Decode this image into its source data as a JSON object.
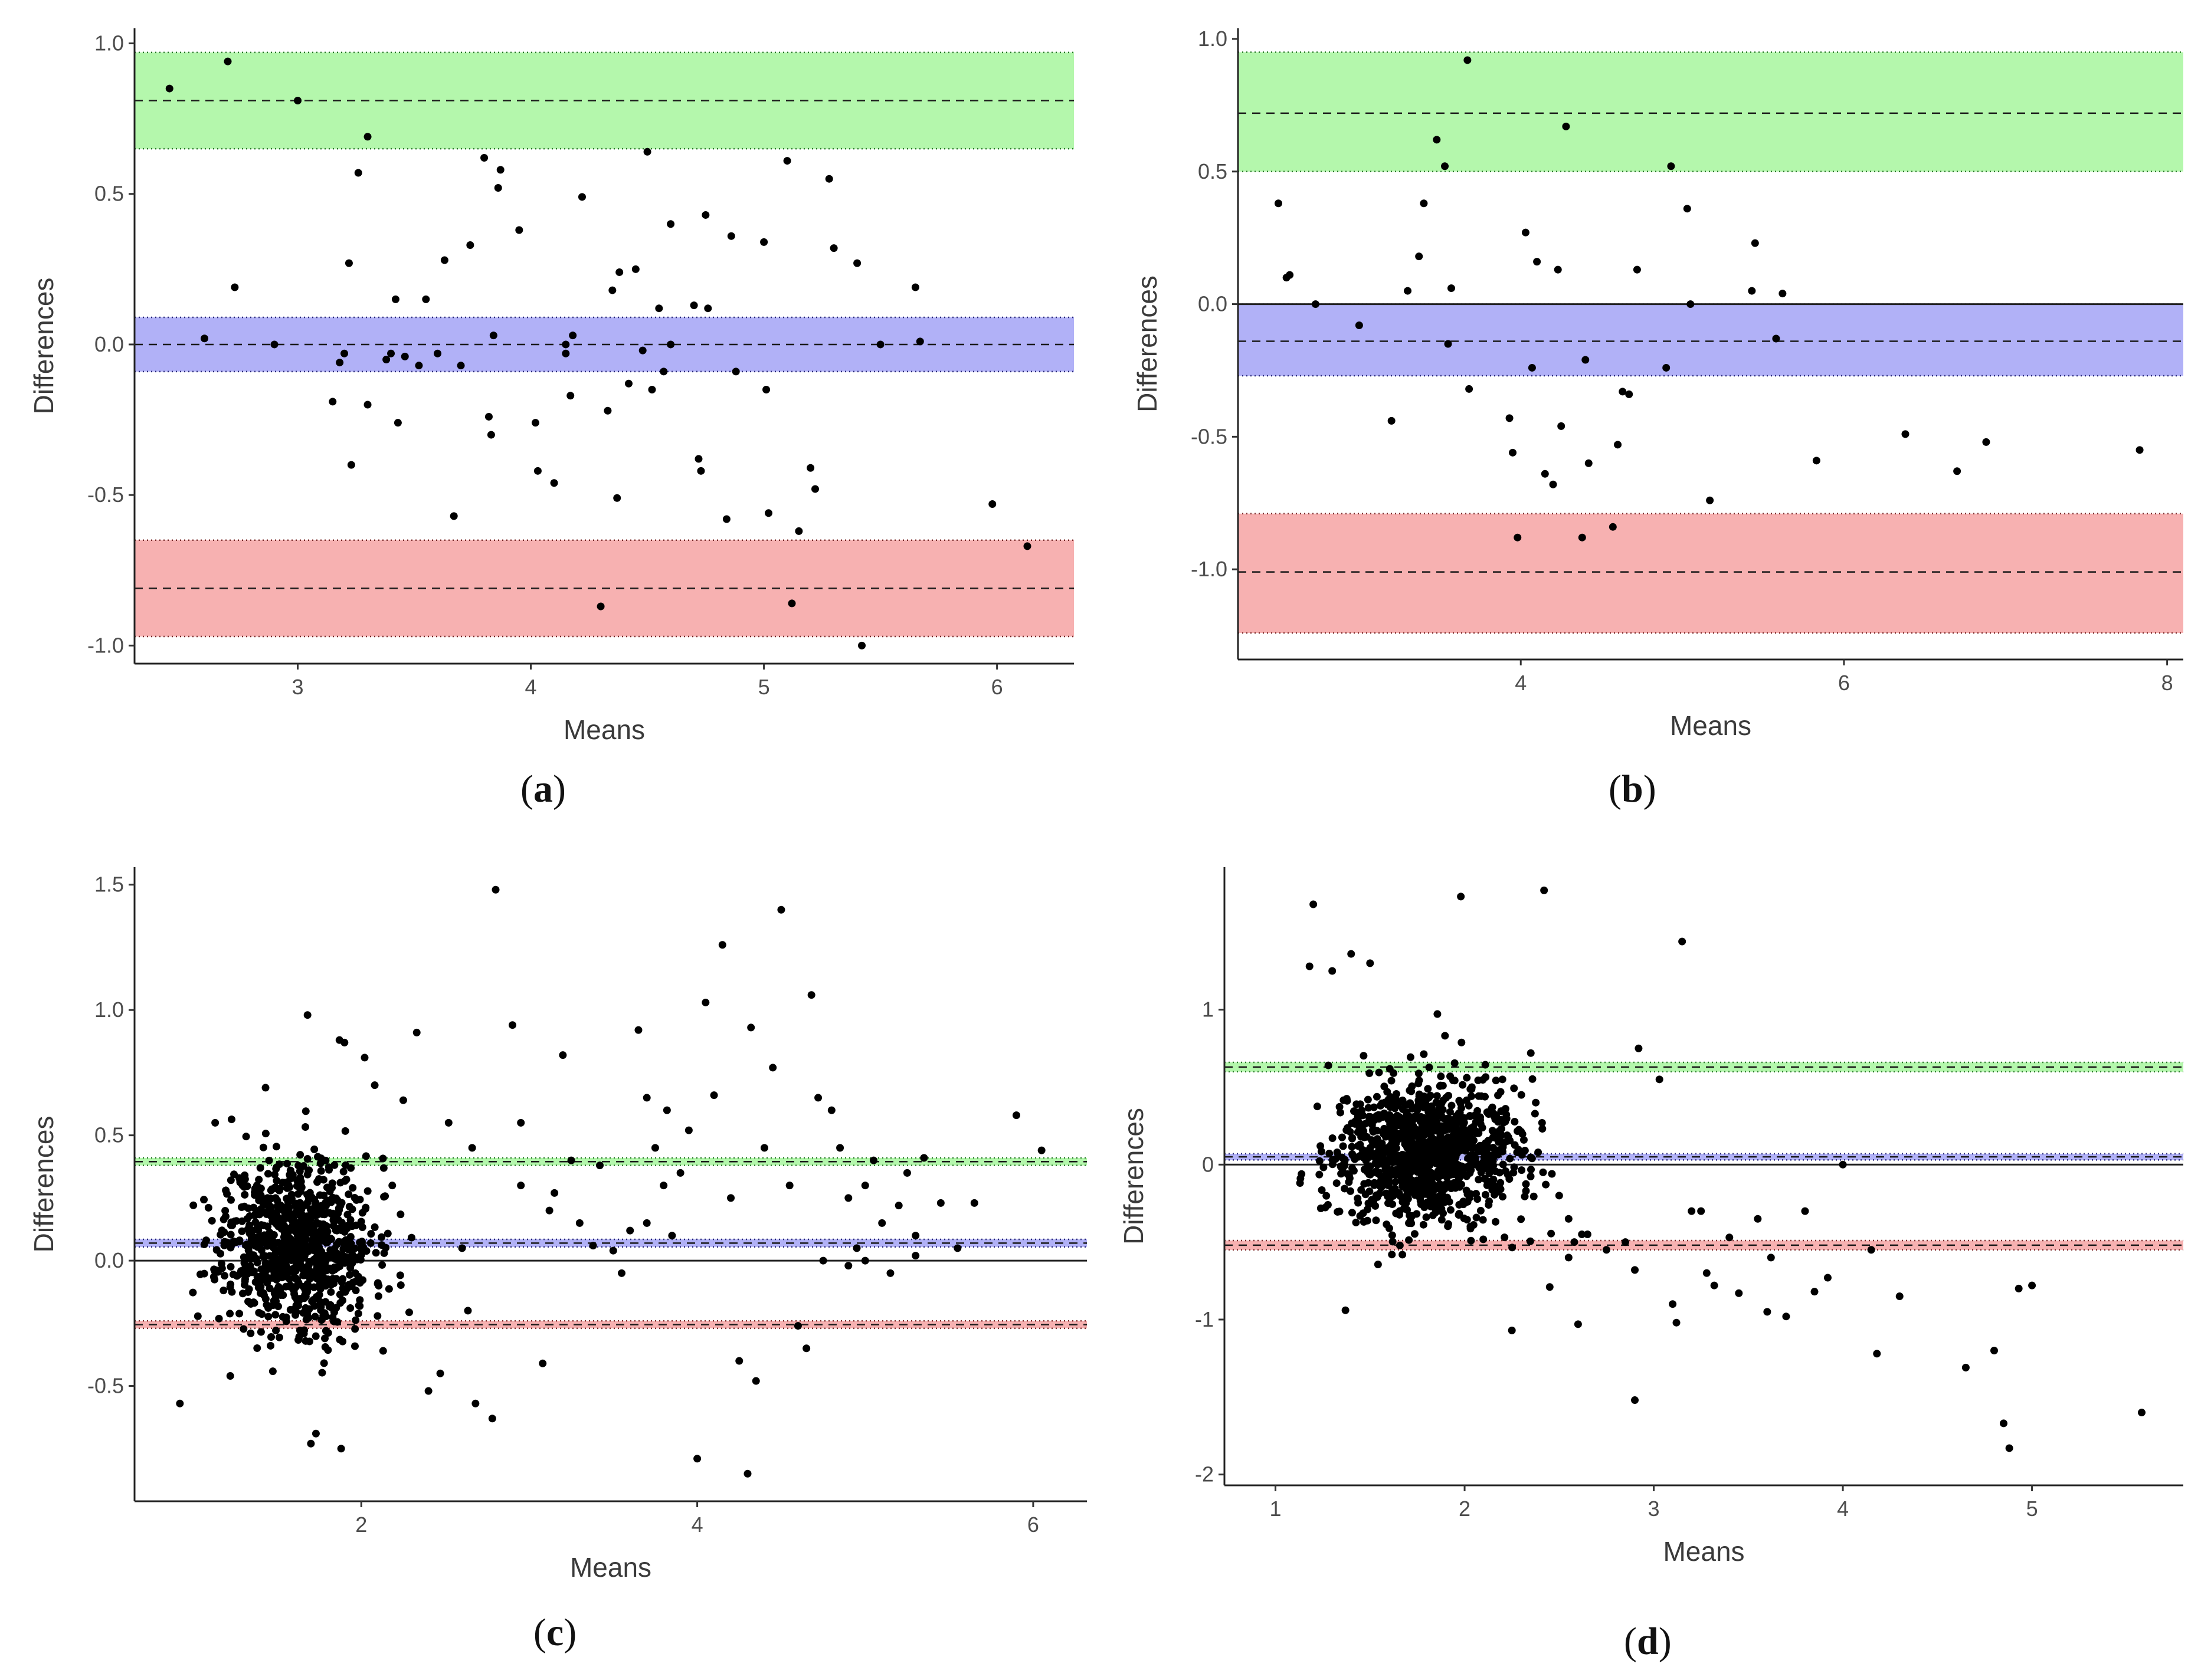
{
  "chart_data": [
    {
      "id": "a",
      "label": "a",
      "type": "scatter",
      "xlabel": "Means",
      "ylabel": "Differences",
      "xlim": [
        2.3,
        6.33
      ],
      "ylim": [
        -1.06,
        1.05
      ],
      "xticks": [
        3,
        4,
        5,
        6
      ],
      "yticks": [
        -1.0,
        -0.5,
        0.0,
        0.5,
        1.0
      ],
      "tick_format": 1,
      "bands": [
        {
          "name": "upper limit of agreement",
          "color": "#b0f7a8",
          "line_color": "#2a7a2a",
          "lower": 0.65,
          "mean": 0.81,
          "upper": 0.97
        },
        {
          "name": "mean difference",
          "color": "#adadf7",
          "line_color": "#2a2a7a",
          "lower": -0.09,
          "mean": 0.0,
          "upper": 0.09
        },
        {
          "name": "lower limit of agreement",
          "color": "#f7adad",
          "line_color": "#7a2a2a",
          "lower": -0.97,
          "mean": -0.81,
          "upper": -0.65
        }
      ],
      "zero_line": false,
      "points": [
        [
          2.45,
          0.85
        ],
        [
          2.7,
          0.94
        ],
        [
          3.0,
          0.81
        ],
        [
          3.3,
          0.69
        ],
        [
          2.6,
          0.02
        ],
        [
          2.73,
          0.19
        ],
        [
          3.15,
          -0.19
        ],
        [
          3.18,
          -0.06
        ],
        [
          3.2,
          -0.03
        ],
        [
          3.22,
          0.27
        ],
        [
          3.23,
          -0.4
        ],
        [
          3.26,
          0.57
        ],
        [
          3.3,
          -0.2
        ],
        [
          3.38,
          -0.05
        ],
        [
          3.4,
          -0.03
        ],
        [
          3.42,
          0.15
        ],
        [
          3.43,
          -0.26
        ],
        [
          3.46,
          -0.04
        ],
        [
          3.52,
          -0.07
        ],
        [
          3.55,
          0.15
        ],
        [
          3.6,
          -0.03
        ],
        [
          3.63,
          0.28
        ],
        [
          3.67,
          -0.57
        ],
        [
          3.7,
          -0.07
        ],
        [
          3.74,
          0.33
        ],
        [
          3.8,
          0.62
        ],
        [
          3.82,
          -0.24
        ],
        [
          3.83,
          -0.3
        ],
        [
          3.84,
          0.03
        ],
        [
          3.86,
          0.52
        ],
        [
          3.87,
          0.58
        ],
        [
          3.95,
          0.38
        ],
        [
          4.02,
          -0.26
        ],
        [
          4.03,
          -0.42
        ],
        [
          4.1,
          -0.46
        ],
        [
          4.15,
          -0.03
        ],
        [
          4.17,
          -0.17
        ],
        [
          4.18,
          0.03
        ],
        [
          4.22,
          0.49
        ],
        [
          4.3,
          -0.87
        ],
        [
          4.33,
          -0.22
        ],
        [
          4.35,
          0.18
        ],
        [
          4.37,
          -0.51
        ],
        [
          4.38,
          0.24
        ],
        [
          4.42,
          -0.13
        ],
        [
          4.45,
          0.25
        ],
        [
          4.48,
          -0.02
        ],
        [
          4.5,
          0.64
        ],
        [
          4.52,
          -0.15
        ],
        [
          4.55,
          0.12
        ],
        [
          4.57,
          -0.09
        ],
        [
          4.6,
          0.4
        ],
        [
          4.7,
          0.13
        ],
        [
          4.72,
          -0.38
        ],
        [
          4.73,
          -0.42
        ],
        [
          4.75,
          0.43
        ],
        [
          4.76,
          0.12
        ],
        [
          4.84,
          -0.58
        ],
        [
          4.86,
          0.36
        ],
        [
          4.88,
          -0.09
        ],
        [
          5.0,
          0.34
        ],
        [
          5.01,
          -0.15
        ],
        [
          5.02,
          -0.56
        ],
        [
          5.1,
          0.61
        ],
        [
          5.15,
          -0.62
        ],
        [
          5.2,
          -0.41
        ],
        [
          5.22,
          -0.48
        ],
        [
          5.28,
          0.55
        ],
        [
          5.3,
          0.32
        ],
        [
          5.4,
          0.27
        ],
        [
          5.42,
          -1.0
        ],
        [
          5.5,
          0.0
        ],
        [
          5.65,
          0.19
        ],
        [
          5.67,
          0.01
        ],
        [
          5.98,
          -0.53
        ],
        [
          6.13,
          -0.67
        ],
        [
          5.12,
          -0.86
        ],
        [
          4.6,
          0.0
        ],
        [
          4.15,
          0.0
        ],
        [
          2.9,
          0.0
        ]
      ]
    },
    {
      "id": "b",
      "label": "b",
      "type": "scatter",
      "xlabel": "Means",
      "ylabel": "Differences",
      "xlim": [
        2.25,
        8.1
      ],
      "ylim": [
        -1.34,
        1.04
      ],
      "xticks": [
        4,
        6,
        8
      ],
      "yticks": [
        -1.0,
        -0.5,
        0.0,
        0.5,
        1.0
      ],
      "tick_format": 1,
      "bands": [
        {
          "name": "upper limit of agreement",
          "color": "#b0f7a8",
          "line_color": "#2a7a2a",
          "lower": 0.5,
          "mean": 0.72,
          "upper": 0.95
        },
        {
          "name": "mean difference",
          "color": "#adadf7",
          "line_color": "#2a2a7a",
          "lower": -0.27,
          "mean": -0.14,
          "upper": 0.0
        },
        {
          "name": "lower limit of agreement",
          "color": "#f7adad",
          "line_color": "#7a2a2a",
          "lower": -1.24,
          "mean": -1.01,
          "upper": -0.79
        }
      ],
      "zero_line": true,
      "points": [
        [
          2.5,
          0.38
        ],
        [
          2.55,
          0.1
        ],
        [
          2.57,
          0.11
        ],
        [
          2.73,
          0.0
        ],
        [
          3.0,
          -0.08
        ],
        [
          3.2,
          -0.44
        ],
        [
          3.3,
          0.05
        ],
        [
          3.37,
          0.18
        ],
        [
          3.4,
          0.38
        ],
        [
          3.48,
          0.62
        ],
        [
          3.53,
          0.52
        ],
        [
          3.55,
          -0.15
        ],
        [
          3.57,
          0.06
        ],
        [
          3.67,
          0.92
        ],
        [
          3.68,
          -0.32
        ],
        [
          3.93,
          -0.43
        ],
        [
          3.95,
          -0.56
        ],
        [
          3.98,
          -0.88
        ],
        [
          4.03,
          0.27
        ],
        [
          4.07,
          -0.24
        ],
        [
          4.1,
          0.16
        ],
        [
          4.15,
          -0.64
        ],
        [
          4.2,
          -0.68
        ],
        [
          4.23,
          0.13
        ],
        [
          4.25,
          -0.46
        ],
        [
          4.28,
          0.67
        ],
        [
          4.38,
          -0.88
        ],
        [
          4.4,
          -0.21
        ],
        [
          4.42,
          -0.6
        ],
        [
          4.57,
          -0.84
        ],
        [
          4.6,
          -0.53
        ],
        [
          4.63,
          -0.33
        ],
        [
          4.67,
          -0.34
        ],
        [
          4.72,
          0.13
        ],
        [
          4.9,
          -0.24
        ],
        [
          4.93,
          0.52
        ],
        [
          5.03,
          0.36
        ],
        [
          5.05,
          0.0
        ],
        [
          5.17,
          -0.74
        ],
        [
          5.43,
          0.05
        ],
        [
          5.45,
          0.23
        ],
        [
          5.58,
          -0.13
        ],
        [
          5.62,
          0.04
        ],
        [
          5.83,
          -0.59
        ],
        [
          6.38,
          -0.49
        ],
        [
          6.7,
          -0.63
        ],
        [
          6.88,
          -0.52
        ],
        [
          7.83,
          -0.55
        ]
      ]
    },
    {
      "id": "c",
      "label": "c",
      "type": "scatter",
      "xlabel": "Means",
      "ylabel": "Differences",
      "xlim": [
        0.65,
        6.32
      ],
      "ylim": [
        -0.96,
        1.57
      ],
      "xticks": [
        2,
        4,
        6
      ],
      "yticks": [
        -0.5,
        0.0,
        0.5,
        1.0,
        1.5
      ],
      "tick_format": 1,
      "bands": [
        {
          "name": "upper limit of agreement",
          "color": "#b0f7a8",
          "line_color": "#2a7a2a",
          "lower": 0.38,
          "mean": 0.395,
          "upper": 0.41
        },
        {
          "name": "mean difference",
          "color": "#adadf7",
          "line_color": "#2a2a7a",
          "lower": 0.055,
          "mean": 0.07,
          "upper": 0.085
        },
        {
          "name": "lower limit of agreement",
          "color": "#f7adad",
          "line_color": "#7a2a2a",
          "lower": -0.27,
          "mean": -0.255,
          "upper": -0.24
        }
      ],
      "zero_line": true,
      "cluster": {
        "n": 900,
        "x_mean": 1.62,
        "x_sd": 0.22,
        "y_mean": 0.07,
        "y_sd": 0.17,
        "seed": 11
      },
      "points": [
        [
          0.92,
          -0.57
        ],
        [
          1.13,
          0.55
        ],
        [
          1.22,
          -0.46
        ],
        [
          1.43,
          0.69
        ],
        [
          1.68,
          0.98
        ],
        [
          1.73,
          -0.69
        ],
        [
          1.7,
          -0.73
        ],
        [
          1.88,
          -0.75
        ],
        [
          1.87,
          0.88
        ],
        [
          1.9,
          0.87
        ],
        [
          2.02,
          0.81
        ],
        [
          2.08,
          0.7
        ],
        [
          2.13,
          -0.36
        ],
        [
          2.25,
          0.64
        ],
        [
          2.33,
          0.91
        ],
        [
          2.4,
          -0.52
        ],
        [
          2.47,
          -0.45
        ],
        [
          2.52,
          0.55
        ],
        [
          2.6,
          0.05
        ],
        [
          2.66,
          0.45
        ],
        [
          2.68,
          -0.57
        ],
        [
          2.78,
          -0.63
        ],
        [
          2.8,
          1.48
        ],
        [
          2.9,
          0.94
        ],
        [
          2.95,
          0.3
        ],
        [
          3.08,
          -0.41
        ],
        [
          3.15,
          0.27
        ],
        [
          3.2,
          0.82
        ],
        [
          3.25,
          0.4
        ],
        [
          3.3,
          0.15
        ],
        [
          3.38,
          0.06
        ],
        [
          3.42,
          0.38
        ],
        [
          3.5,
          0.04
        ],
        [
          3.6,
          0.12
        ],
        [
          3.65,
          0.92
        ],
        [
          3.7,
          0.65
        ],
        [
          3.75,
          0.45
        ],
        [
          3.8,
          0.3
        ],
        [
          3.82,
          0.6
        ],
        [
          3.85,
          0.1
        ],
        [
          3.9,
          0.35
        ],
        [
          3.95,
          0.52
        ],
        [
          4.0,
          -0.79
        ],
        [
          4.05,
          1.03
        ],
        [
          4.1,
          0.66
        ],
        [
          4.15,
          1.26
        ],
        [
          4.2,
          0.25
        ],
        [
          4.25,
          -0.4
        ],
        [
          4.3,
          -0.85
        ],
        [
          4.32,
          0.93
        ],
        [
          4.35,
          -0.48
        ],
        [
          4.4,
          0.45
        ],
        [
          4.45,
          0.77
        ],
        [
          4.5,
          1.4
        ],
        [
          4.55,
          0.3
        ],
        [
          4.6,
          -0.26
        ],
        [
          4.65,
          -0.35
        ],
        [
          4.68,
          1.06
        ],
        [
          4.72,
          0.65
        ],
        [
          4.8,
          0.6
        ],
        [
          4.85,
          0.45
        ],
        [
          4.9,
          0.25
        ],
        [
          4.95,
          0.05
        ],
        [
          5.0,
          0.3
        ],
        [
          5.05,
          0.4
        ],
        [
          5.1,
          0.15
        ],
        [
          5.15,
          -0.05
        ],
        [
          5.2,
          0.22
        ],
        [
          5.25,
          0.35
        ],
        [
          5.3,
          0.1
        ],
        [
          5.35,
          0.41
        ],
        [
          5.45,
          0.23
        ],
        [
          5.55,
          0.05
        ],
        [
          5.65,
          0.23
        ],
        [
          5.9,
          0.58
        ],
        [
          6.05,
          0.44
        ],
        [
          3.55,
          -0.05
        ],
        [
          3.7,
          0.15
        ],
        [
          2.95,
          0.55
        ],
        [
          3.12,
          0.2
        ],
        [
          4.75,
          0.0
        ],
        [
          4.9,
          -0.02
        ],
        [
          5.0,
          0.0
        ],
        [
          5.3,
          0.02
        ]
      ]
    },
    {
      "id": "d",
      "label": "d",
      "type": "scatter",
      "xlabel": "Means",
      "ylabel": "Differences",
      "xlim": [
        0.73,
        5.8
      ],
      "ylim": [
        -2.07,
        1.92
      ],
      "xticks": [
        1,
        2,
        3,
        4,
        5
      ],
      "yticks": [
        -2,
        -1,
        0,
        1
      ],
      "tick_format": 0,
      "bands": [
        {
          "name": "upper limit of agreement",
          "color": "#b0f7a8",
          "line_color": "#2a7a2a",
          "lower": 0.6,
          "mean": 0.63,
          "upper": 0.66
        },
        {
          "name": "mean difference",
          "color": "#adadf7",
          "line_color": "#2a2a7a",
          "lower": 0.03,
          "mean": 0.05,
          "upper": 0.07
        },
        {
          "name": "lower limit of agreement",
          "color": "#f7adad",
          "line_color": "#7a2a2a",
          "lower": -0.55,
          "mean": -0.52,
          "upper": -0.49
        },
        {
          "name": "zero",
          "color": "none",
          "line_color": "none",
          "lower": 0,
          "mean": 0,
          "upper": 0
        }
      ],
      "zero_line": true,
      "cluster": {
        "n": 1100,
        "x_mean": 1.78,
        "x_sd": 0.24,
        "y_mean": 0.08,
        "y_sd": 0.22,
        "seed": 29
      },
      "points": [
        [
          1.2,
          1.68
        ],
        [
          1.18,
          1.28
        ],
        [
          1.3,
          1.25
        ],
        [
          1.4,
          1.36
        ],
        [
          1.5,
          1.3
        ],
        [
          1.37,
          -0.94
        ],
        [
          1.98,
          1.73
        ],
        [
          2.42,
          1.77
        ],
        [
          3.15,
          1.44
        ],
        [
          2.25,
          -1.07
        ],
        [
          2.6,
          -1.03
        ],
        [
          2.45,
          -0.79
        ],
        [
          2.55,
          -0.6
        ],
        [
          2.62,
          -0.45
        ],
        [
          2.75,
          -0.55
        ],
        [
          2.85,
          -0.5
        ],
        [
          2.9,
          -0.68
        ],
        [
          2.9,
          -1.52
        ],
        [
          2.92,
          0.75
        ],
        [
          3.03,
          0.55
        ],
        [
          3.1,
          -0.9
        ],
        [
          3.12,
          -1.02
        ],
        [
          3.2,
          -0.3
        ],
        [
          3.25,
          -0.3
        ],
        [
          3.28,
          -0.7
        ],
        [
          3.32,
          -0.78
        ],
        [
          3.4,
          -0.47
        ],
        [
          3.45,
          -0.83
        ],
        [
          3.55,
          -0.35
        ],
        [
          3.6,
          -0.95
        ],
        [
          3.62,
          -0.6
        ],
        [
          3.7,
          -0.98
        ],
        [
          3.8,
          -0.3
        ],
        [
          3.85,
          -0.82
        ],
        [
          3.92,
          -0.73
        ],
        [
          4.0,
          0.0
        ],
        [
          4.15,
          -0.55
        ],
        [
          4.18,
          -1.22
        ],
        [
          4.3,
          -0.85
        ],
        [
          4.65,
          -1.31
        ],
        [
          4.8,
          -1.2
        ],
        [
          4.85,
          -1.67
        ],
        [
          4.88,
          -1.83
        ],
        [
          4.93,
          -0.8
        ],
        [
          5.0,
          -0.78
        ],
        [
          5.58,
          -1.6
        ],
        [
          2.2,
          0.55
        ],
        [
          2.3,
          0.45
        ],
        [
          2.35,
          0.72
        ],
        [
          2.5,
          -0.2
        ],
        [
          2.55,
          -0.35
        ],
        [
          2.58,
          -0.5
        ],
        [
          2.65,
          -0.45
        ]
      ]
    }
  ]
}
